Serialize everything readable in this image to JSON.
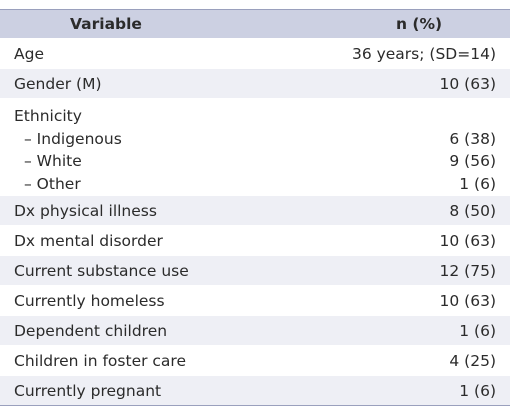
{
  "header": {
    "variable": "Variable",
    "n_pct": "n (%)"
  },
  "rows": [
    {
      "label": "Age",
      "value": "36 years; (SD=14)"
    },
    {
      "label": "Gender (M)",
      "value": "10 (63)"
    }
  ],
  "ethnicity": {
    "label": "Ethnicity",
    "items": [
      {
        "label": "– Indigenous",
        "value": "6 (38)"
      },
      {
        "label": "– White",
        "value": "9 (56)"
      },
      {
        "label": "– Other",
        "value": "1 (6)"
      }
    ]
  },
  "rows_after": [
    {
      "label": "Dx physical illness",
      "value": "8 (50)"
    },
    {
      "label": "Dx mental disorder",
      "value": "10 (63)"
    },
    {
      "label": "Current substance use",
      "value": "12 (75)"
    },
    {
      "label": "Currently homeless",
      "value": "10 (63)"
    },
    {
      "label": "Dependent children",
      "value": "1 (6)"
    },
    {
      "label": "Children in foster care",
      "value": "4 (25)"
    },
    {
      "label": "Currently pregnant",
      "value": "1 (6)"
    }
  ]
}
